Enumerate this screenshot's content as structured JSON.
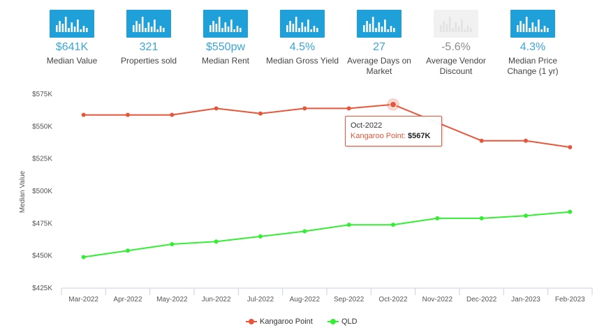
{
  "stats": [
    {
      "value": "$641K",
      "label": "Median Value",
      "icon": "bar-chart-icon",
      "muted": false
    },
    {
      "value": "321",
      "label": "Properties sold",
      "icon": "bar-chart-icon",
      "muted": false
    },
    {
      "value": "$550pw",
      "label": "Median Rent",
      "icon": "bar-chart-icon",
      "muted": false
    },
    {
      "value": "4.5%",
      "label": "Median Gross Yield",
      "icon": "bar-chart-icon",
      "muted": false
    },
    {
      "value": "27",
      "label": "Average Days on Market",
      "icon": "bar-chart-icon",
      "muted": false
    },
    {
      "value": "-5.6%",
      "label": "Average Vendor Discount",
      "icon": "bar-chart-icon",
      "muted": true
    },
    {
      "value": "4.3%",
      "label": "Median Price Change (1 yr)",
      "icon": "bar-chart-icon",
      "muted": false
    }
  ],
  "colors": {
    "accent": "#3aa5d9",
    "icon_bg": "#1fa0d8",
    "kangaroo": "#e8563a",
    "qld": "#33ee33"
  },
  "chart_data": {
    "type": "line",
    "title": "",
    "xlabel": "",
    "ylabel": "Median Value",
    "categories": [
      "Mar-2022",
      "Apr-2022",
      "May-2022",
      "Jun-2022",
      "Jul-2022",
      "Aug-2022",
      "Sep-2022",
      "Oct-2022",
      "Nov-2022",
      "Dec-2022",
      "Jan-2023",
      "Feb-2023"
    ],
    "series": [
      {
        "name": "Kangaroo Point",
        "color": "#e8563a",
        "values": [
          559000,
          559000,
          559000,
          564000,
          560000,
          564000,
          564000,
          567000,
          null,
          539000,
          539000,
          534000
        ]
      },
      {
        "name": "QLD",
        "color": "#33ee33",
        "values": [
          449000,
          454000,
          459000,
          461000,
          465000,
          469000,
          474000,
          474000,
          479000,
          479000,
          481000,
          484000
        ]
      }
    ],
    "ylim": [
      425000,
      575000
    ],
    "yticks": [
      425000,
      450000,
      475000,
      500000,
      525000,
      550000,
      575000
    ],
    "ytick_labels": [
      "$425K",
      "$450K",
      "$475K",
      "$500K",
      "$525K",
      "$550K",
      "$575K"
    ],
    "grid": false,
    "legend": "bottom-center",
    "tooltip": {
      "title": "Oct-2022",
      "series": "Kangaroo Point",
      "value": "$567K",
      "index": 7
    }
  }
}
